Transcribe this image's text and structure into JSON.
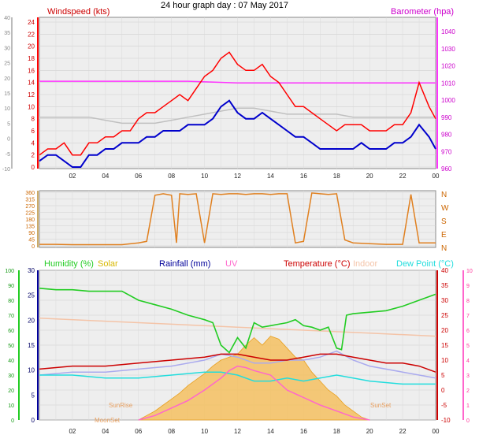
{
  "title": "24 hour graph day : 07 May 2017",
  "colors": {
    "wind_gust": "#ff0000",
    "wind_avg": "#0000cc",
    "barometer": "#ff33ff",
    "outside_temp_grey": "#c0c0c0",
    "wind_dir": "#e08020",
    "humidity": "#22cc22",
    "solar": "#d8b800",
    "rainfall": "#000099",
    "uv": "#ff66cc",
    "temperature": "#cc0000",
    "indoor": "#f4c4a8",
    "dew_point": "#22dddd",
    "app_temp": "#aaaaee",
    "panel_bg": "#eeeeee"
  },
  "chart_data": [
    {
      "type": "line",
      "panel": "wind",
      "title": "",
      "left_axis_label": "Windspeed (kts)",
      "right_axis_label": "Barometer (hpa)",
      "x_ticks": [
        "02",
        "04",
        "06",
        "08",
        "10",
        "12",
        "14",
        "16",
        "18",
        "20",
        "22",
        "00"
      ],
      "x_range_hours": [
        0,
        24
      ],
      "left_ylim": [
        0,
        24
      ],
      "left_ticks": [
        0,
        2,
        4,
        6,
        8,
        10,
        12,
        14,
        16,
        18,
        20,
        22,
        24
      ],
      "outer_left_ylim": [
        -10,
        40
      ],
      "outer_left_ticks": [
        -10,
        -5,
        0,
        5,
        10,
        15,
        20,
        25,
        30,
        35,
        40
      ],
      "right_ylim": [
        960,
        1040
      ],
      "right_ticks": [
        960,
        970,
        980,
        990,
        1000,
        1010,
        1020,
        1030,
        1040
      ],
      "series": [
        {
          "name": "gust",
          "axis": "left",
          "x": [
            0,
            0.5,
            1,
            1.5,
            2,
            2.5,
            3,
            3.5,
            4,
            4.5,
            5,
            5.5,
            6,
            6.5,
            7,
            7.5,
            8,
            8.5,
            9,
            9.5,
            10,
            10.5,
            11,
            11.5,
            12,
            12.5,
            13,
            13.5,
            14,
            14.5,
            15,
            15.5,
            16,
            16.5,
            17,
            17.5,
            18,
            18.5,
            19,
            19.5,
            20,
            20.5,
            21,
            21.5,
            22,
            22.5,
            23,
            23.3,
            23.6,
            24
          ],
          "values": [
            2,
            3,
            3,
            4,
            2,
            2,
            4,
            4,
            5,
            5,
            6,
            6,
            8,
            9,
            9,
            10,
            11,
            12,
            11,
            13,
            15,
            16,
            18,
            19,
            17,
            16,
            16,
            17,
            15,
            14,
            12,
            10,
            10,
            9,
            8,
            7,
            6,
            7,
            7,
            7,
            6,
            6,
            6,
            7,
            7,
            9,
            14,
            12,
            10,
            8
          ]
        },
        {
          "name": "average",
          "axis": "left",
          "x": [
            0,
            0.5,
            1,
            1.5,
            2,
            2.5,
            3,
            3.5,
            4,
            4.5,
            5,
            5.5,
            6,
            6.5,
            7,
            7.5,
            8,
            8.5,
            9,
            9.5,
            10,
            10.5,
            11,
            11.5,
            12,
            12.5,
            13,
            13.5,
            14,
            14.5,
            15,
            15.5,
            16,
            16.5,
            17,
            17.5,
            18,
            18.5,
            19,
            19.5,
            20,
            20.5,
            21,
            21.5,
            22,
            22.5,
            23,
            23.3,
            23.6,
            24
          ],
          "values": [
            1,
            2,
            2,
            1,
            0,
            0,
            2,
            2,
            3,
            3,
            4,
            4,
            4,
            5,
            5,
            6,
            6,
            6,
            7,
            7,
            7,
            8,
            10,
            11,
            9,
            8,
            8,
            9,
            8,
            7,
            6,
            5,
            5,
            4,
            3,
            3,
            3,
            3,
            3,
            4,
            3,
            3,
            3,
            4,
            4,
            5,
            7,
            6,
            5,
            3
          ]
        },
        {
          "name": "barometer",
          "axis": "right",
          "x": [
            0,
            3,
            6,
            9,
            12,
            15,
            18,
            21,
            24
          ],
          "values": [
            1011,
            1011,
            1011,
            1011,
            1010,
            1010,
            1010,
            1010,
            1010
          ]
        },
        {
          "name": "grey",
          "axis": "outer_left",
          "x": [
            0,
            1,
            2,
            3,
            4,
            5,
            6,
            7,
            8,
            9,
            10,
            11,
            12,
            13,
            14,
            15,
            16,
            17,
            18,
            19,
            20,
            21,
            22,
            23,
            24
          ],
          "values": [
            7,
            7,
            7,
            7,
            6,
            5,
            5,
            5,
            6,
            7,
            8,
            9,
            10,
            10,
            9,
            8,
            8,
            8,
            8,
            7,
            7,
            7,
            7,
            7,
            7
          ]
        }
      ]
    },
    {
      "type": "line",
      "panel": "wind_direction",
      "title": "",
      "left_ticks": [
        0,
        45,
        90,
        135,
        180,
        225,
        270,
        315,
        360
      ],
      "ylim": [
        0,
        360
      ],
      "right_labels": [
        "N",
        "W",
        "S",
        "E",
        "N"
      ],
      "x_ticks": [
        "02",
        "04",
        "06",
        "08",
        "10",
        "12",
        "14",
        "16",
        "18",
        "20",
        "22",
        "00"
      ],
      "series": [
        {
          "name": "direction",
          "x": [
            0,
            1,
            2,
            3,
            4,
            5,
            6,
            6.5,
            7,
            7.5,
            8,
            8.3,
            8.5,
            9,
            9.5,
            10,
            10.5,
            11,
            11.5,
            12,
            12.5,
            13,
            13.5,
            14,
            14.5,
            15,
            15.5,
            16,
            16.5,
            17,
            17.5,
            18,
            18.5,
            19,
            20,
            21,
            22,
            22.5,
            23,
            24
          ],
          "values": [
            10,
            10,
            8,
            8,
            8,
            8,
            20,
            30,
            340,
            350,
            340,
            20,
            350,
            345,
            350,
            20,
            350,
            345,
            350,
            350,
            345,
            350,
            350,
            345,
            350,
            350,
            20,
            30,
            355,
            350,
            345,
            350,
            40,
            20,
            15,
            10,
            10,
            345,
            20,
            20
          ]
        }
      ]
    },
    {
      "type": "line",
      "panel": "weather",
      "title": "",
      "legend": [
        "Humidity (%)",
        "Solar",
        "Rainfall (mm)",
        "UV",
        "Temperature (°C)",
        "Indoor",
        "Dew Point (°C)"
      ],
      "x_ticks": [
        "02",
        "04",
        "06",
        "08",
        "10",
        "12",
        "14",
        "16",
        "18",
        "20",
        "22",
        "00"
      ],
      "left_ylim": [
        0,
        100
      ],
      "left_ticks": [
        0,
        10,
        20,
        30,
        40,
        50,
        60,
        70,
        80,
        90,
        100
      ],
      "rain_ticks": [
        0,
        5,
        10,
        15,
        20,
        25,
        30
      ],
      "temp_ylim": [
        -10,
        40
      ],
      "temp_ticks": [
        -10,
        -5,
        0,
        5,
        10,
        15,
        20,
        25,
        30,
        35,
        40
      ],
      "uv_ylim": [
        0,
        10
      ],
      "uv_ticks": [
        0,
        1,
        2,
        3,
        4,
        5,
        6,
        7,
        8,
        9,
        10
      ],
      "annotations": [
        "SunRise",
        "SunSet",
        "MoonSet"
      ],
      "series": [
        {
          "name": "Humidity (%)",
          "axis": "left",
          "x": [
            0,
            1,
            2,
            3,
            4,
            5,
            6,
            7,
            8,
            9,
            10,
            10.5,
            11,
            11.5,
            12,
            12.5,
            13,
            13.5,
            14,
            14.5,
            15,
            15.5,
            16,
            16.5,
            17,
            17.5,
            18,
            18.3,
            18.6,
            19,
            20,
            21,
            22,
            23,
            24
          ],
          "values": [
            88,
            87,
            87,
            86,
            86,
            86,
            80,
            77,
            74,
            70,
            67,
            65,
            50,
            45,
            55,
            48,
            65,
            62,
            63,
            64,
            65,
            67,
            63,
            62,
            60,
            62,
            48,
            47,
            70,
            71,
            72,
            73,
            76,
            80,
            84
          ]
        },
        {
          "name": "Solar",
          "axis": "left",
          "x": [
            6,
            6.5,
            7,
            7.5,
            8,
            8.5,
            9,
            9.5,
            10,
            10.5,
            11,
            11.5,
            12,
            12.5,
            13,
            13.5,
            14,
            14.5,
            15,
            15.5,
            16,
            16.5,
            17,
            17.5,
            18,
            18.5,
            19,
            19.5,
            20
          ],
          "values": [
            0,
            3,
            6,
            10,
            14,
            18,
            23,
            27,
            31,
            36,
            40,
            42,
            44,
            50,
            55,
            50,
            56,
            54,
            48,
            42,
            40,
            32,
            26,
            20,
            16,
            10,
            6,
            2,
            0
          ]
        },
        {
          "name": "Temperature (°C)",
          "axis": "temp",
          "x": [
            0,
            2,
            4,
            6,
            8,
            10,
            11,
            12,
            13,
            14,
            15,
            16,
            17,
            18,
            19,
            20,
            21,
            22,
            23,
            24
          ],
          "values": [
            7,
            8,
            8,
            9,
            10,
            11,
            12,
            12,
            11,
            10,
            10,
            11,
            12,
            12,
            11,
            10,
            9,
            9,
            8,
            6
          ]
        },
        {
          "name": "Indoor",
          "axis": "temp",
          "x": [
            0,
            4,
            8,
            12,
            16,
            20,
            24
          ],
          "values": [
            24,
            23,
            22,
            21,
            20,
            19,
            18
          ]
        },
        {
          "name": "Dew Point (°C)",
          "axis": "temp",
          "x": [
            0,
            2,
            4,
            6,
            8,
            10,
            11,
            12,
            13,
            14,
            15,
            16,
            17,
            18,
            19,
            20,
            22,
            24
          ],
          "values": [
            5,
            5,
            4,
            4,
            5,
            6,
            6,
            5,
            3,
            3,
            4,
            3,
            4,
            5,
            4,
            3,
            2,
            2
          ]
        },
        {
          "name": "app_temp",
          "axis": "temp",
          "x": [
            0,
            2,
            4,
            6,
            8,
            10,
            11,
            12,
            13,
            14,
            15,
            16,
            17,
            18,
            19,
            20,
            22,
            24
          ],
          "values": [
            5,
            6,
            6,
            7,
            8,
            10,
            12,
            11,
            9,
            9,
            10,
            10,
            11,
            13,
            10,
            8,
            6,
            4
          ]
        },
        {
          "name": "UV",
          "axis": "uv",
          "x": [
            6,
            7,
            8,
            9,
            10,
            11,
            11.5,
            12,
            12.5,
            13,
            14,
            15,
            16,
            17,
            18,
            19,
            20
          ],
          "values": [
            0,
            0.3,
            0.8,
            1.3,
            2,
            2.8,
            3.3,
            3.6,
            3.5,
            3.3,
            3,
            2,
            1.5,
            1,
            0.6,
            0.2,
            0
          ]
        }
      ]
    }
  ]
}
